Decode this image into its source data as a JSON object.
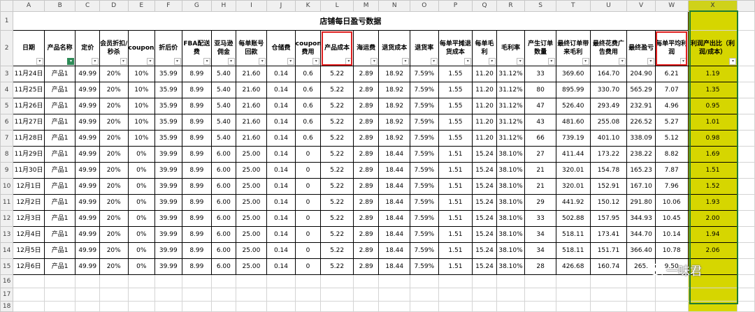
{
  "sheet": {
    "col_letters": [
      "A",
      "B",
      "C",
      "D",
      "E",
      "F",
      "G",
      "H",
      "I",
      "J",
      "K",
      "L",
      "M",
      "N",
      "O",
      "P",
      "Q",
      "R",
      "S",
      "T",
      "U",
      "V",
      "W",
      "X"
    ],
    "title": "店铺每日盈亏数据",
    "headers": [
      "日期",
      "产品名称",
      "定价",
      "会员折扣/秒杀",
      "coupon/code",
      "折后价",
      "FBA配送费",
      "亚马逊佣金",
      "每单账号回款",
      "仓储费",
      "coupon费用",
      "产品成本",
      "海运费",
      "退货成本",
      "退货率",
      "每单平摊退货成本",
      "每单毛利",
      "毛利率",
      "产生订单数量",
      "最终订单带来毛利",
      "最终花费广告费用",
      "最终盈亏",
      "每单平均利润",
      "利润产出比（利润/成本）"
    ],
    "rows": [
      [
        "11月24日",
        "产品1",
        "49.99",
        "20%",
        "10%",
        "35.99",
        "8.99",
        "5.40",
        "21.60",
        "0.14",
        "0.6",
        "5.22",
        "2.89",
        "18.92",
        "7.59%",
        "1.55",
        "11.20",
        "31.12%",
        "33",
        "369.60",
        "164.70",
        "204.90",
        "6.21",
        "1.19"
      ],
      [
        "11月25日",
        "产品1",
        "49.99",
        "20%",
        "10%",
        "35.99",
        "8.99",
        "5.40",
        "21.60",
        "0.14",
        "0.6",
        "5.22",
        "2.89",
        "18.92",
        "7.59%",
        "1.55",
        "11.20",
        "31.12%",
        "80",
        "895.99",
        "330.70",
        "565.29",
        "7.07",
        "1.35"
      ],
      [
        "11月26日",
        "产品1",
        "49.99",
        "20%",
        "10%",
        "35.99",
        "8.99",
        "5.40",
        "21.60",
        "0.14",
        "0.6",
        "5.22",
        "2.89",
        "18.92",
        "7.59%",
        "1.55",
        "11.20",
        "31.12%",
        "47",
        "526.40",
        "293.49",
        "232.91",
        "4.96",
        "0.95"
      ],
      [
        "11月27日",
        "产品1",
        "49.99",
        "20%",
        "10%",
        "35.99",
        "8.99",
        "5.40",
        "21.60",
        "0.14",
        "0.6",
        "5.22",
        "2.89",
        "18.92",
        "7.59%",
        "1.55",
        "11.20",
        "31.12%",
        "43",
        "481.60",
        "255.08",
        "226.52",
        "5.27",
        "1.01"
      ],
      [
        "11月28日",
        "产品1",
        "49.99",
        "20%",
        "10%",
        "35.99",
        "8.99",
        "5.40",
        "21.60",
        "0.14",
        "0.6",
        "5.22",
        "2.89",
        "18.92",
        "7.59%",
        "1.55",
        "11.20",
        "31.12%",
        "66",
        "739.19",
        "401.10",
        "338.09",
        "5.12",
        "0.98"
      ],
      [
        "11月29日",
        "产品1",
        "49.99",
        "20%",
        "0%",
        "39.99",
        "8.99",
        "6.00",
        "25.00",
        "0.14",
        "0",
        "5.22",
        "2.89",
        "18.44",
        "7.59%",
        "1.51",
        "15.24",
        "38.10%",
        "27",
        "411.44",
        "173.22",
        "238.22",
        "8.82",
        "1.69"
      ],
      [
        "11月30日",
        "产品1",
        "49.99",
        "20%",
        "0%",
        "39.99",
        "8.99",
        "6.00",
        "25.00",
        "0.14",
        "0",
        "5.22",
        "2.89",
        "18.44",
        "7.59%",
        "1.51",
        "15.24",
        "38.10%",
        "21",
        "320.01",
        "154.78",
        "165.23",
        "7.87",
        "1.51"
      ],
      [
        "12月1日",
        "产品1",
        "49.99",
        "20%",
        "0%",
        "39.99",
        "8.99",
        "6.00",
        "25.00",
        "0.14",
        "0",
        "5.22",
        "2.89",
        "18.44",
        "7.59%",
        "1.51",
        "15.24",
        "38.10%",
        "21",
        "320.01",
        "152.91",
        "167.10",
        "7.96",
        "1.52"
      ],
      [
        "12月2日",
        "产品1",
        "49.99",
        "20%",
        "0%",
        "39.99",
        "8.99",
        "6.00",
        "25.00",
        "0.14",
        "0",
        "5.22",
        "2.89",
        "18.44",
        "7.59%",
        "1.51",
        "15.24",
        "38.10%",
        "29",
        "441.92",
        "150.12",
        "291.80",
        "10.06",
        "1.93"
      ],
      [
        "12月3日",
        "产品1",
        "49.99",
        "20%",
        "0%",
        "39.99",
        "8.99",
        "6.00",
        "25.00",
        "0.14",
        "0",
        "5.22",
        "2.89",
        "18.44",
        "7.59%",
        "1.51",
        "15.24",
        "38.10%",
        "33",
        "502.88",
        "157.95",
        "344.93",
        "10.45",
        "2.00"
      ],
      [
        "12月4日",
        "产品1",
        "49.99",
        "20%",
        "0%",
        "39.99",
        "8.99",
        "6.00",
        "25.00",
        "0.14",
        "0",
        "5.22",
        "2.89",
        "18.44",
        "7.59%",
        "1.51",
        "15.24",
        "38.10%",
        "34",
        "518.11",
        "173.41",
        "344.70",
        "10.14",
        "1.94"
      ],
      [
        "12月5日",
        "产品1",
        "49.99",
        "20%",
        "0%",
        "39.99",
        "8.99",
        "6.00",
        "25.00",
        "0.14",
        "0",
        "5.22",
        "2.89",
        "18.44",
        "7.59%",
        "1.51",
        "15.24",
        "38.10%",
        "34",
        "518.11",
        "151.71",
        "366.40",
        "10.78",
        "2.06"
      ],
      [
        "12月6日",
        "产品1",
        "49.99",
        "20%",
        "0%",
        "39.99",
        "8.99",
        "6.00",
        "25.00",
        "0.14",
        "0",
        "5.22",
        "2.89",
        "18.44",
        "7.59%",
        "1.51",
        "15.24",
        "38.10%",
        "28",
        "426.68",
        "160.74",
        "265.",
        "9.50",
        ""
      ]
    ],
    "row_numbers": [
      "1",
      "2",
      "3",
      "4",
      "5",
      "6",
      "7",
      "8",
      "9",
      "10",
      "11",
      "12",
      "13",
      "14",
      "15",
      "16",
      "17",
      "18"
    ],
    "highlight_color": "#d6d600",
    "callout_color": "#e02020"
  },
  "watermark": {
    "text": "一味君",
    "icon": "wechat-official-account-icon"
  }
}
